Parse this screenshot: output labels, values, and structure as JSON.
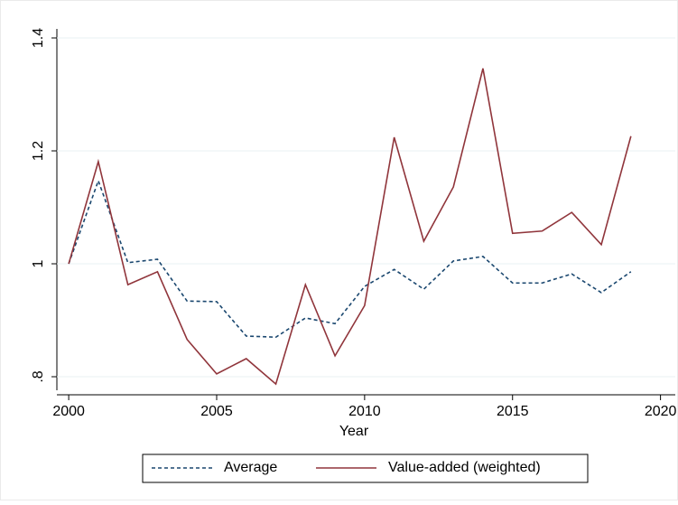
{
  "chart_data": {
    "type": "line",
    "x_label": "Year",
    "x": [
      2000,
      2001,
      2002,
      2003,
      2004,
      2005,
      2006,
      2007,
      2008,
      2009,
      2010,
      2011,
      2012,
      2013,
      2014,
      2015,
      2016,
      2017,
      2018,
      2019
    ],
    "series": [
      {
        "name": "Average",
        "color": "#1a476f",
        "dashed": true,
        "values": [
          1.0,
          1.147,
          1.002,
          1.008,
          0.934,
          0.933,
          0.872,
          0.87,
          0.904,
          0.894,
          0.96,
          0.99,
          0.955,
          1.005,
          1.013,
          0.966,
          0.966,
          0.982,
          0.949,
          0.986
        ]
      },
      {
        "name": "Value-added (weighted)",
        "color": "#90353b",
        "dashed": false,
        "values": [
          1.0,
          1.181,
          0.963,
          0.986,
          0.866,
          0.805,
          0.832,
          0.787,
          0.963,
          0.837,
          0.926,
          1.224,
          1.04,
          1.136,
          1.346,
          1.054,
          1.058,
          1.091,
          1.034,
          1.226
        ]
      }
    ],
    "xlim": [
      1999.6,
      2020.5
    ],
    "xticks": [
      2000,
      2005,
      2010,
      2015,
      2020
    ],
    "ylim": [
      0.776,
      1.416
    ],
    "yticks": [
      {
        "value": 0.8,
        "label": ".8"
      },
      1,
      1.2,
      1.4
    ],
    "grid": true,
    "legend": "bottom"
  }
}
